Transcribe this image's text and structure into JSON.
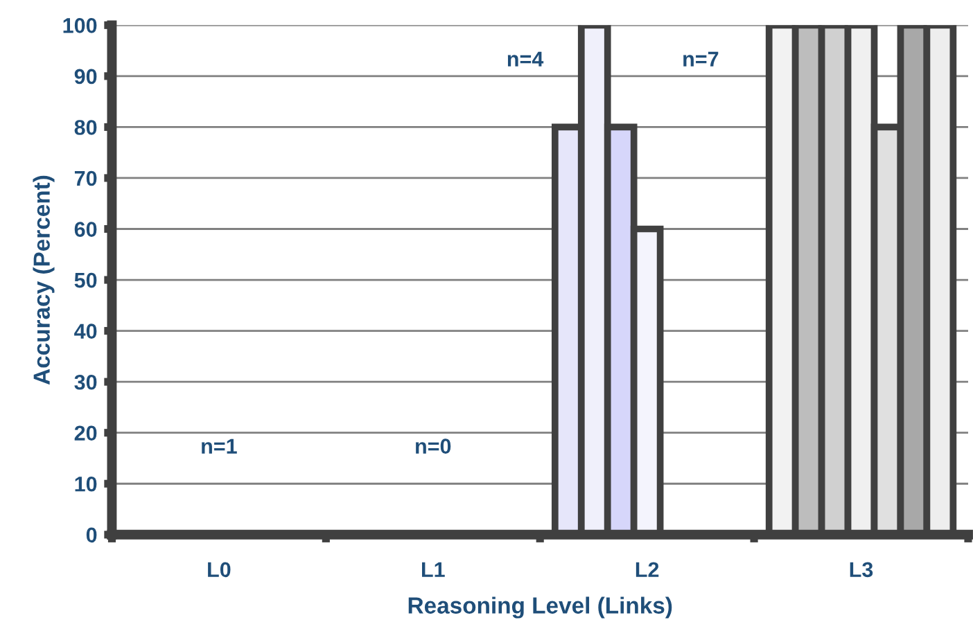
{
  "chart_data": {
    "type": "bar",
    "xlabel": "Reasoning Level (Links)",
    "ylabel": "Accuracy (Percent)",
    "categories": [
      "L0",
      "L1",
      "L2",
      "L3"
    ],
    "series": [
      {
        "colors": [
          "#e6e6fa",
          "#e6e6fa",
          "#e6e6fa",
          "#f2f2f2"
        ],
        "values": [
          null,
          null,
          80,
          100
        ]
      },
      {
        "colors": [
          "#f0f0fb",
          "#f0f0fb",
          "#f0f0fb",
          "#bdbdbd"
        ],
        "values": [
          null,
          null,
          100,
          100
        ]
      },
      {
        "colors": [
          "#d6d6fa",
          "#d6d6fa",
          "#d6d6fa",
          "#d0d0d0"
        ],
        "values": [
          null,
          null,
          80,
          100
        ]
      },
      {
        "colors": [
          "#f4f4fd",
          "#f4f4fd",
          "#f4f4fd",
          "#f0f0f0"
        ],
        "values": [
          null,
          null,
          60,
          100
        ]
      },
      {
        "colors": [
          "#e0e0e0",
          "#e0e0e0",
          "#e0e0e0",
          "#e0e0e0"
        ],
        "values": [
          null,
          null,
          null,
          80
        ]
      },
      {
        "colors": [
          "#a8a8a8",
          "#a8a8a8",
          "#a8a8a8",
          "#a8a8a8"
        ],
        "values": [
          null,
          null,
          null,
          100
        ]
      },
      {
        "colors": [
          "#eeeeee",
          "#eeeeee",
          "#eeeeee",
          "#eeeeee"
        ],
        "values": [
          null,
          null,
          null,
          100
        ]
      }
    ],
    "ylim": [
      0,
      100
    ],
    "yticks": [
      0,
      10,
      20,
      30,
      40,
      50,
      60,
      70,
      80,
      90,
      100
    ],
    "grid": "y",
    "annotations": [
      "n=1",
      "n=0",
      "n=4",
      "n=7"
    ]
  }
}
